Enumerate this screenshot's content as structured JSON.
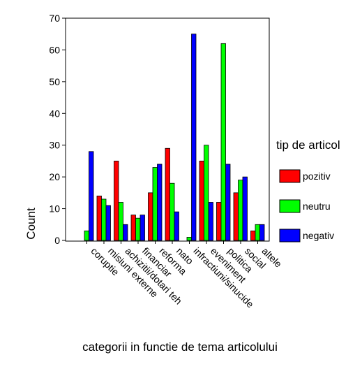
{
  "chart_data": {
    "type": "bar",
    "title": "",
    "xlabel": "categorii in functie de tema articolului",
    "ylabel": "Count",
    "ylim": [
      0,
      70
    ],
    "yticks": [
      0,
      10,
      20,
      30,
      40,
      50,
      60,
      70
    ],
    "grid": false,
    "legend_placement": "right",
    "categories": [
      "coruptie",
      "misiuni externe",
      "achizitii/dotari teh",
      "financiar",
      "reforma",
      "nato",
      "infractiuni/sinucide",
      "eveniment",
      "politica",
      "social",
      "altele"
    ],
    "legend_title": "tip de articol",
    "series": [
      {
        "name": "pozitiv",
        "color": "#ff0000",
        "values": [
          0,
          14,
          25,
          8,
          15,
          29,
          0,
          25,
          12,
          15,
          3
        ]
      },
      {
        "name": "neutru",
        "color": "#00ff00",
        "values": [
          3,
          13,
          12,
          7,
          23,
          18,
          1,
          30,
          62,
          19,
          5
        ]
      },
      {
        "name": "negativ",
        "color": "#0000ff",
        "values": [
          28,
          11,
          5,
          8,
          24,
          9,
          65,
          12,
          24,
          20,
          5
        ]
      }
    ]
  }
}
